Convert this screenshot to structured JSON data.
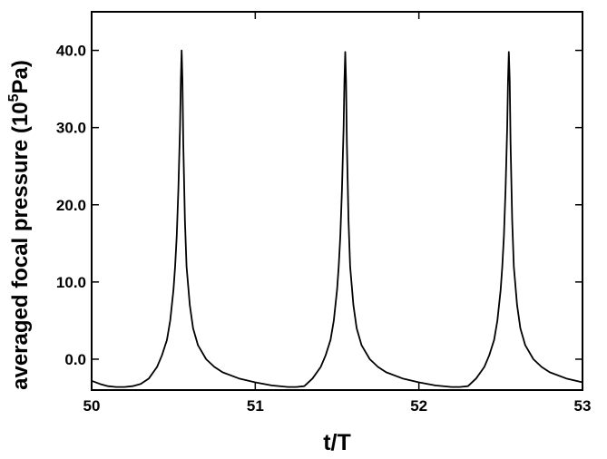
{
  "chart_data": {
    "type": "line",
    "title": "",
    "xlabel": "t/T",
    "ylabel_parts": {
      "before": "averaged focal pressure (10",
      "sup": "5",
      "after": "Pa)"
    },
    "xlim": [
      50,
      53
    ],
    "ylim": [
      -4,
      45
    ],
    "x_ticks": [
      50,
      51,
      52,
      53
    ],
    "x_tick_labels": [
      "50",
      "51",
      "52",
      "53"
    ],
    "y_ticks": [
      0,
      10,
      20,
      30,
      40
    ],
    "y_tick_labels": [
      "0.0",
      "10.0",
      "20.0",
      "30.0",
      "40.0"
    ],
    "grid": false,
    "line_color": "#000000",
    "series": [
      {
        "x": [
          50.0,
          50.05,
          50.1,
          50.15,
          50.2,
          50.25,
          50.3,
          50.35,
          50.4,
          50.43,
          50.46,
          50.48,
          50.5,
          50.51,
          50.52,
          50.53,
          50.54,
          50.545,
          50.55,
          50.555,
          50.56,
          50.57,
          50.58,
          50.6,
          50.62,
          50.65,
          50.7,
          50.75,
          50.8,
          50.9,
          51.0,
          51.1,
          51.2,
          51.25,
          51.3,
          51.35,
          51.4,
          51.43,
          51.46,
          51.48,
          51.5,
          51.51,
          51.52,
          51.53,
          51.54,
          51.545,
          51.55,
          51.555,
          51.56,
          51.57,
          51.58,
          51.6,
          51.62,
          51.65,
          51.7,
          51.75,
          51.8,
          51.9,
          52.0,
          52.1,
          52.2,
          52.25,
          52.3,
          52.35,
          52.4,
          52.43,
          52.46,
          52.48,
          52.5,
          52.51,
          52.52,
          52.53,
          52.54,
          52.545,
          52.55,
          52.555,
          52.56,
          52.57,
          52.58,
          52.6,
          52.62,
          52.65,
          52.7,
          52.75,
          52.8,
          52.9,
          53.0
        ],
        "y": [
          -2.8,
          -3.2,
          -3.5,
          -3.6,
          -3.6,
          -3.5,
          -3.2,
          -2.5,
          -1.0,
          0.5,
          2.5,
          5.0,
          9.0,
          12.0,
          16.0,
          22.0,
          30.0,
          36.0,
          40.0,
          36.0,
          28.0,
          18.0,
          12.0,
          7.0,
          4.0,
          1.8,
          0.0,
          -1.0,
          -1.7,
          -2.5,
          -3.0,
          -3.4,
          -3.6,
          -3.6,
          -3.5,
          -2.5,
          -1.0,
          0.5,
          2.5,
          5.0,
          9.0,
          12.0,
          16.0,
          22.0,
          30.0,
          36.0,
          39.8,
          36.0,
          28.0,
          18.0,
          12.0,
          7.0,
          4.0,
          1.8,
          0.0,
          -1.0,
          -1.7,
          -2.5,
          -3.0,
          -3.4,
          -3.6,
          -3.6,
          -3.5,
          -2.5,
          -1.0,
          0.5,
          2.5,
          5.0,
          9.0,
          12.0,
          16.0,
          22.0,
          30.0,
          36.0,
          39.8,
          36.0,
          28.0,
          18.0,
          12.0,
          7.0,
          4.0,
          1.8,
          0.0,
          -1.0,
          -1.7,
          -2.5,
          -3.0
        ]
      }
    ]
  }
}
